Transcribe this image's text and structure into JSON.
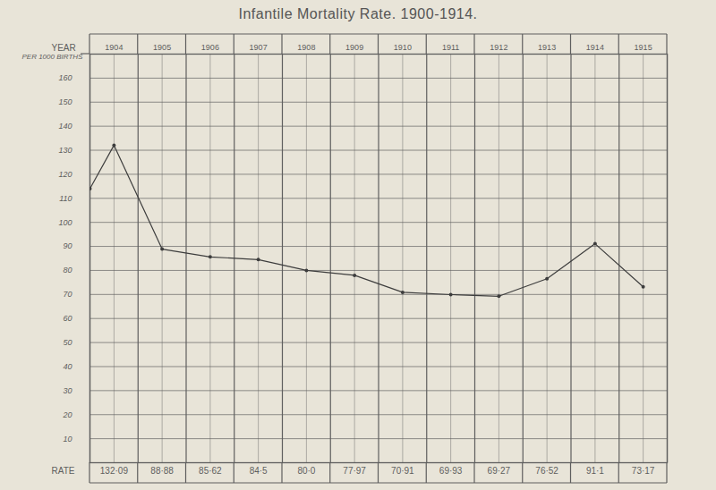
{
  "chart_data": {
    "type": "line",
    "title": "Infantile Mortality Rate. 1900-1914.",
    "x_label": "YEAR",
    "y_label": "PER 1000 BIRTHS",
    "x": [
      1903.5,
      1904,
      1905,
      1906,
      1907,
      1908,
      1909,
      1910,
      1911,
      1912,
      1913,
      1914,
      1915
    ],
    "series": [
      {
        "name": "RATE",
        "color": "#3d3d3d",
        "marker": "circle",
        "values": [
          114,
          132.09,
          88.88,
          85.62,
          84.5,
          80.0,
          77.97,
          70.91,
          69.93,
          69.27,
          76.52,
          91.1,
          73.17
        ],
        "value_labels": [
          null,
          "132·09",
          "88·88",
          "85·62",
          "84·5",
          "80·0",
          "77·97",
          "70·91",
          "69·93",
          "69·27",
          "76·52",
          "91·1",
          "73·17"
        ]
      }
    ],
    "xlim": [
      1903.5,
      1915.5
    ],
    "xticks": [
      1904,
      1905,
      1906,
      1907,
      1908,
      1909,
      1910,
      1911,
      1912,
      1913,
      1914,
      1915
    ],
    "ylim": [
      0,
      170
    ],
    "yticks": [
      10,
      20,
      30,
      40,
      50,
      60,
      70,
      80,
      90,
      100,
      110,
      120,
      130,
      140,
      150,
      160
    ],
    "grid": true,
    "data_labels": true
  }
}
